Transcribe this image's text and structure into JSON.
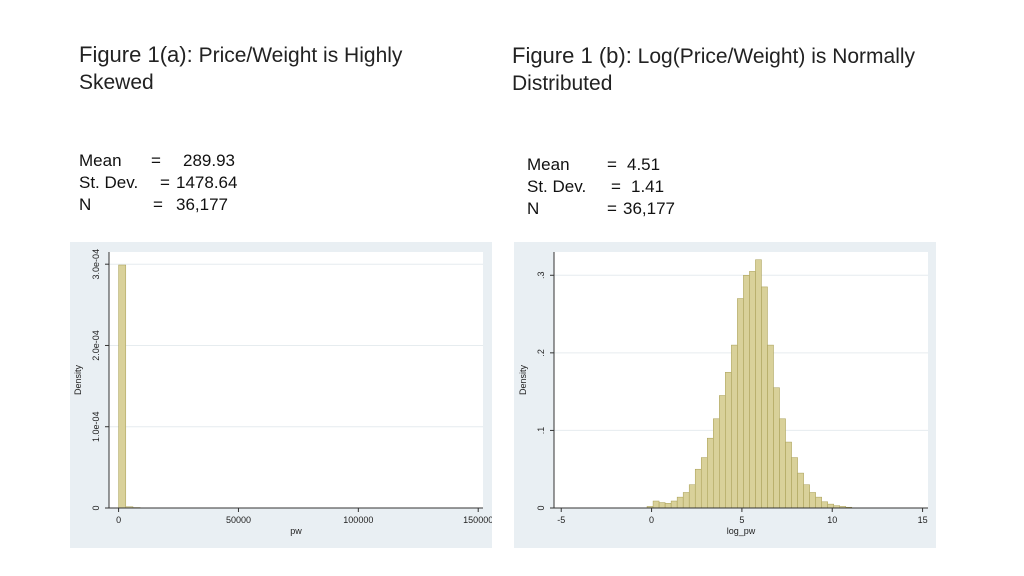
{
  "figure_a": {
    "title_lead": "Figure 1(a):",
    "title_rest": "Price/Weight is Highly",
    "title_line2": "Skewed",
    "stats": [
      {
        "name": "Mean",
        "value": "289.93"
      },
      {
        "name": "St. Dev.",
        "value": "1478.64"
      },
      {
        "name": "N",
        "value": "36,177"
      }
    ]
  },
  "figure_b": {
    "title_lead": "Figure 1 (b):",
    "title_rest": "Log(Price/Weight) is Normally",
    "title_line2": "Distributed",
    "stats": [
      {
        "name": "Mean",
        "value": "4.51"
      },
      {
        "name": "St. Dev.",
        "value": "1.41"
      },
      {
        "name": "N",
        "value": "36,177"
      }
    ]
  },
  "colors": {
    "bar_fill": "#d9d19a",
    "bar_stroke": "#a69c52",
    "panel_bg": "#e9eff3",
    "plot_bg": "#ffffff",
    "grid": "#e6ecef"
  },
  "chart_data": [
    {
      "type": "bar",
      "title": "",
      "xlabel": "pw",
      "ylabel": "Density",
      "xlim": [
        -4000,
        152000
      ],
      "ylim": [
        0,
        0.000315
      ],
      "x_ticks": [
        0,
        50000,
        100000,
        150000
      ],
      "x_tick_labels": [
        "0",
        "50000",
        "100000",
        "150000"
      ],
      "y_ticks": [
        0,
        0.0001,
        0.0002,
        0.0003
      ],
      "y_tick_labels": [
        "0",
        "1.0e-04",
        "2.0e-04",
        "3.0e-04"
      ],
      "bin_width": 3000,
      "bins": [
        {
          "x0": 0,
          "x1": 3000,
          "value": 0.000299
        },
        {
          "x0": 3000,
          "x1": 6000,
          "value": 1.5e-06
        },
        {
          "x0": 6000,
          "x1": 9000,
          "value": 6e-07
        }
      ]
    },
    {
      "type": "bar",
      "title": "",
      "xlabel": "log_pw",
      "ylabel": "Density",
      "xlim": [
        -5.4,
        15.3
      ],
      "ylim": [
        0,
        0.33
      ],
      "x_ticks": [
        -5,
        0,
        5,
        10,
        15
      ],
      "x_tick_labels": [
        "-5",
        "0",
        "5",
        "10",
        "15"
      ],
      "y_ticks": [
        0,
        0.1,
        0.2,
        0.3
      ],
      "y_tick_labels": [
        "0",
        ".1",
        ".2",
        ".3"
      ],
      "bin_start": -0.25,
      "bin_width": 0.3333,
      "values": [
        0.002,
        0.009,
        0.007,
        0.006,
        0.009,
        0.014,
        0.02,
        0.03,
        0.05,
        0.065,
        0.09,
        0.115,
        0.145,
        0.175,
        0.21,
        0.27,
        0.3,
        0.305,
        0.32,
        0.285,
        0.21,
        0.155,
        0.115,
        0.085,
        0.065,
        0.045,
        0.03,
        0.02,
        0.014,
        0.008,
        0.005,
        0.003,
        0.002,
        0.001
      ]
    }
  ]
}
